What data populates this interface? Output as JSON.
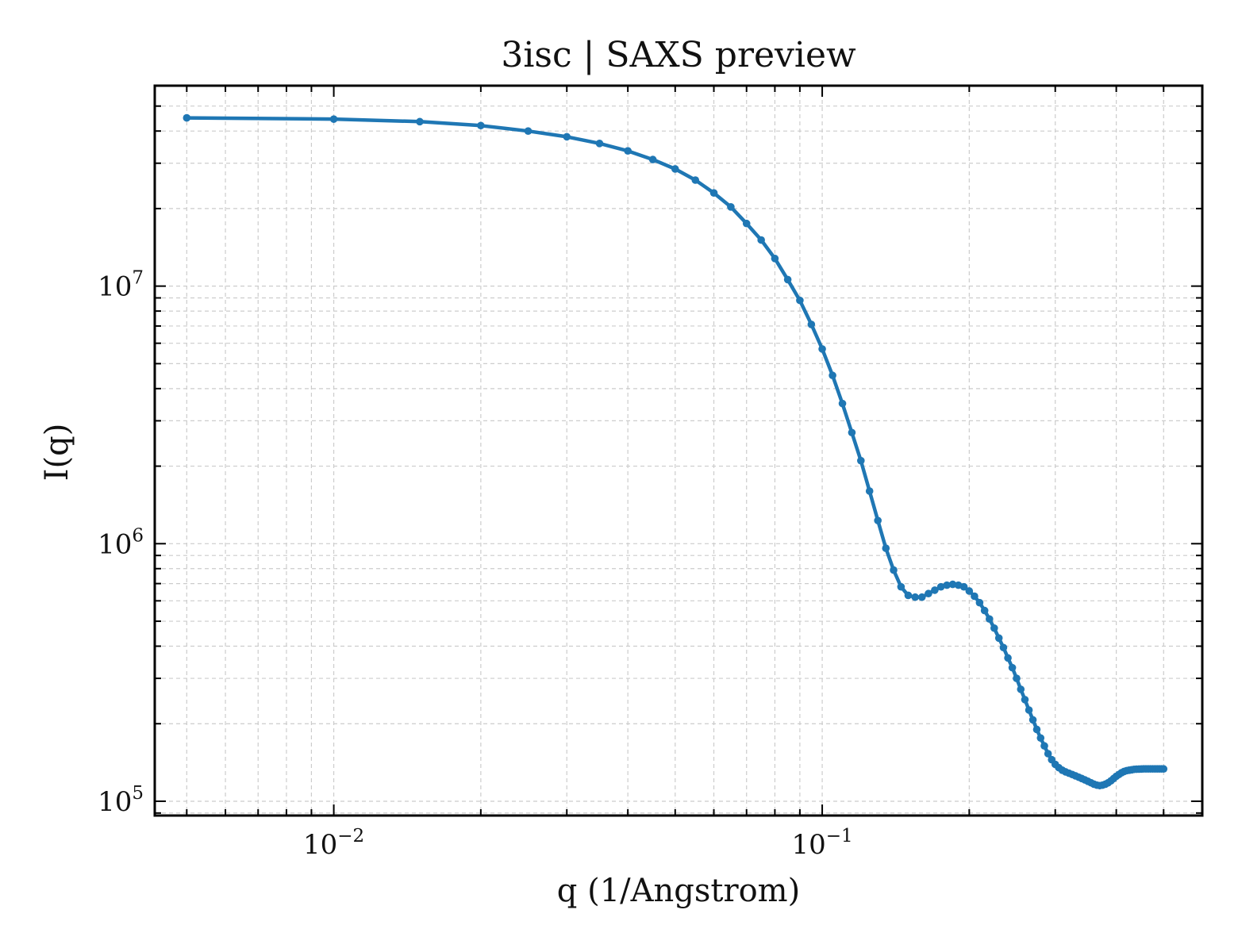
{
  "chart_data": {
    "type": "line",
    "title": "3isc | SAXS preview",
    "xlabel": "q (1/Angstrom)",
    "ylabel": "I(q)",
    "xscale": "log",
    "yscale": "log",
    "xlim": [
      0.0043,
      0.6
    ],
    "ylim": [
      88000,
      60000000
    ],
    "grid": true,
    "x_ticks": [
      {
        "value": 0.01,
        "base": "10",
        "exp": "−2"
      },
      {
        "value": 0.1,
        "base": "10",
        "exp": "−1"
      }
    ],
    "y_ticks": [
      {
        "value": 100000,
        "base": "10",
        "exp": "5"
      },
      {
        "value": 1000000,
        "base": "10",
        "exp": "6"
      },
      {
        "value": 10000000,
        "base": "10",
        "exp": "7"
      }
    ],
    "colors": {
      "line": "#1f77b4",
      "grid": "#cccccc",
      "axes": "#000000"
    },
    "series": [
      {
        "x": [
          0.005,
          0.01,
          0.015,
          0.02,
          0.025,
          0.03,
          0.035,
          0.04,
          0.045,
          0.05,
          0.055,
          0.06,
          0.065,
          0.07,
          0.075,
          0.08,
          0.085,
          0.09,
          0.095,
          0.1,
          0.105,
          0.11,
          0.115,
          0.12,
          0.125,
          0.13,
          0.135,
          0.14,
          0.145,
          0.15,
          0.155,
          0.16,
          0.165,
          0.17,
          0.175,
          0.18,
          0.185,
          0.19,
          0.195,
          0.2,
          0.205,
          0.21,
          0.215,
          0.22,
          0.225,
          0.23,
          0.235,
          0.24,
          0.245,
          0.25,
          0.255,
          0.26,
          0.265,
          0.27,
          0.275,
          0.28,
          0.285,
          0.29,
          0.295,
          0.3,
          0.305,
          0.31,
          0.315,
          0.32,
          0.325,
          0.33,
          0.335,
          0.34,
          0.345,
          0.35,
          0.355,
          0.36,
          0.365,
          0.37,
          0.375,
          0.38,
          0.385,
          0.39,
          0.395,
          0.4,
          0.405,
          0.41,
          0.415,
          0.42,
          0.425,
          0.43,
          0.435,
          0.44,
          0.445,
          0.45,
          0.455,
          0.46,
          0.465,
          0.47,
          0.475,
          0.48,
          0.485,
          0.49,
          0.495,
          0.5
        ],
        "y": [
          45000000,
          44500000,
          43500000,
          42000000,
          40000000,
          38000000,
          35800000,
          33500000,
          31000000,
          28500000,
          25800000,
          23000000,
          20300000,
          17500000,
          15100000,
          12800000,
          10600000,
          8800000,
          7100000,
          5700000,
          4500000,
          3500000,
          2700000,
          2100000,
          1600000,
          1230000,
          960000,
          790000,
          680000,
          630000,
          620000,
          620000,
          640000,
          660000,
          680000,
          690000,
          695000,
          690000,
          680000,
          655000,
          625000,
          590000,
          550000,
          510000,
          470000,
          430000,
          395000,
          360000,
          330000,
          300000,
          272000,
          248000,
          226000,
          207000,
          190000,
          176000,
          164000,
          153000,
          145000,
          139000,
          135000,
          132000,
          130000,
          128500,
          127000,
          125500,
          124000,
          122500,
          121000,
          119500,
          118000,
          116500,
          115500,
          115000,
          115500,
          116500,
          118000,
          120000,
          122500,
          125000,
          127000,
          129000,
          130500,
          131500,
          132000,
          132500,
          133000,
          133200,
          133300,
          133400,
          133500,
          133500,
          133500,
          133500,
          133500,
          133500,
          133500,
          133500,
          133500,
          133500
        ]
      }
    ]
  }
}
